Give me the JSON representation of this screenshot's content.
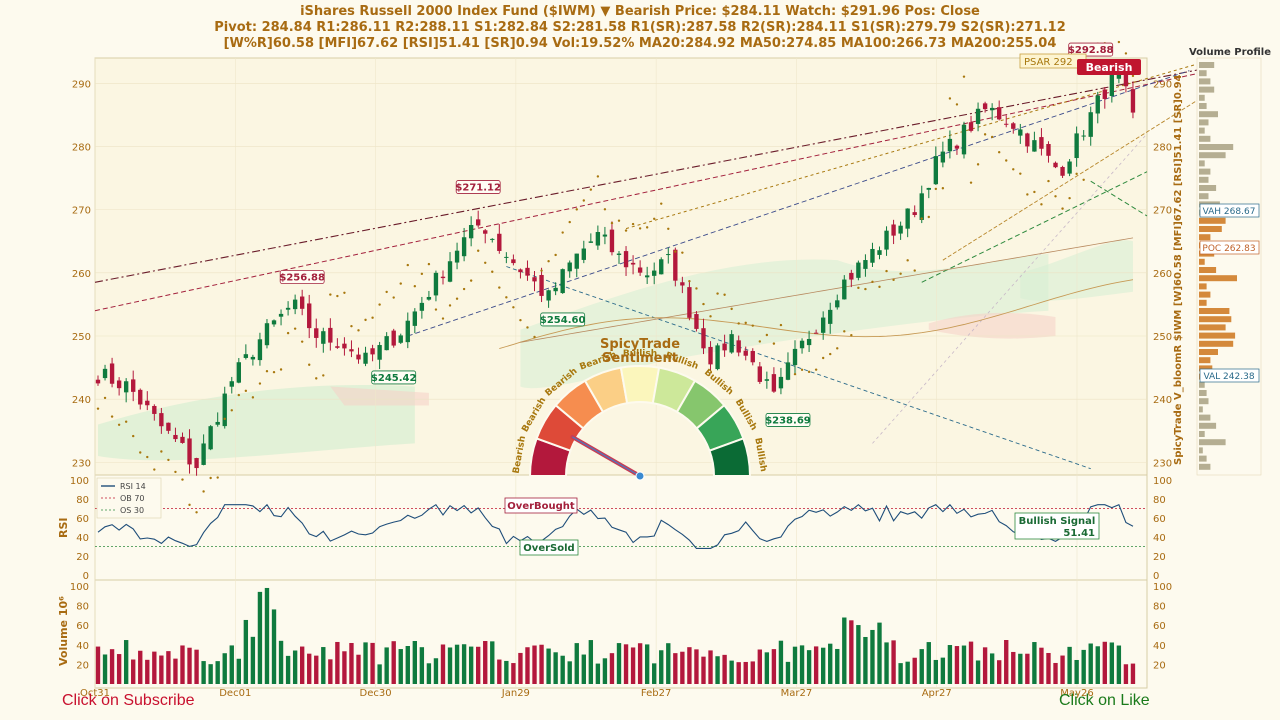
{
  "header": {
    "line1": "iShares Russell 2000 Index Fund  ($IWM)   ▼ Bearish   Price: $284.11    Watch: $291.96    Pos: Close",
    "line2": "Pivot: 284.84   R1:286.11   R2:288.11   S1:282.84   S2:281.58   R1(SR):287.58   R2(SR):284.11   S1(SR):279.79   S2(SR):271.12",
    "line3": "[W%R]60.58   [MFI]67.62   [RSI]51.41   [SR]0.94   Vol:19.52%   MA20:284.92   MA50:274.85   MA100:266.73   MA200:255.04"
  },
  "cta": {
    "subscribe": "Click on Subscribe",
    "like": "Click on Like"
  },
  "colors": {
    "up": "#0f7a3e",
    "down": "#b3183c",
    "accent": "#a86b12",
    "bg": "#fdfaee"
  },
  "chart_data": [
    {
      "type": "candlestick",
      "panel": "price",
      "ylim": [
        228,
        294
      ],
      "yticks": [
        230,
        240,
        250,
        260,
        270,
        280,
        290
      ],
      "right_axis_label": "SpicyTrade V_bloomR  $IWM  [W]60.58 [MFI]67.62 [RSI]51.41 [SR]0.94",
      "x_tick_labels": [
        "Oct31",
        "Dec01",
        "Dec30",
        "Jan29",
        "Feb27",
        "Mar27",
        "Apr27",
        "May26"
      ],
      "sessions": 148,
      "anchors": [
        [
          0,
          244
        ],
        [
          5,
          242
        ],
        [
          10,
          236
        ],
        [
          14,
          232
        ],
        [
          16,
          229
        ],
        [
          18,
          234
        ],
        [
          22,
          243
        ],
        [
          27,
          250
        ],
        [
          32,
          255
        ],
        [
          36,
          250
        ],
        [
          40,
          249
        ],
        [
          44,
          246
        ],
        [
          50,
          251
        ],
        [
          55,
          258
        ],
        [
          59,
          264
        ],
        [
          63,
          268
        ],
        [
          66,
          264
        ],
        [
          70,
          260
        ],
        [
          74,
          256
        ],
        [
          78,
          262
        ],
        [
          82,
          266
        ],
        [
          86,
          262
        ],
        [
          90,
          260
        ],
        [
          94,
          262
        ],
        [
          98,
          252
        ],
        [
          101,
          246
        ],
        [
          104,
          250
        ],
        [
          108,
          245
        ],
        [
          111,
          240
        ],
        [
          114,
          246
        ],
        [
          118,
          252
        ],
        [
          122,
          258
        ],
        [
          126,
          262
        ],
        [
          130,
          266
        ],
        [
          134,
          270
        ],
        [
          138,
          278
        ],
        [
          142,
          282
        ],
        [
          146,
          286
        ],
        [
          150,
          284
        ],
        [
          154,
          280
        ],
        [
          158,
          276
        ],
        [
          162,
          283
        ],
        [
          166,
          290
        ],
        [
          168,
          291
        ],
        [
          170,
          284
        ]
      ],
      "price_labels": [
        {
          "text": "$271.12",
          "i": 62,
          "value": 271.12,
          "type": "high"
        },
        {
          "text": "$256.88",
          "i": 33,
          "value": 256.88,
          "type": "high"
        },
        {
          "text": "$245.42",
          "i": 48,
          "value": 245.42,
          "type": "low"
        },
        {
          "text": "$254.60",
          "i": 76,
          "value": 254.6,
          "type": "low"
        },
        {
          "text": "$238.69",
          "i": 113,
          "value": 238.69,
          "type": "low"
        },
        {
          "text": "$292.88",
          "i": 163,
          "value": 292.88,
          "type": "high"
        }
      ],
      "psar_label": "PSAR 292",
      "signal_label": "Bearish",
      "volume_profile": {
        "title": "Volume Profile",
        "vah": "VAH 268.67",
        "poc": "POC 262.83",
        "val": "VAL 242.38"
      },
      "moving_averages": [
        "MA20",
        "MA50",
        "MA100",
        "MA200"
      ]
    },
    {
      "type": "gauge",
      "title_line1": "SpicyTrade",
      "title_line2": "Sentiment",
      "segments": [
        "Bearish",
        "Bearish",
        "Bearish",
        "Bearish",
        "Bullish",
        "Bullish",
        "Bullish",
        "Bullish",
        "Bullish"
      ],
      "segment_colors": [
        "#b3183c",
        "#de4a38",
        "#f68d4f",
        "#fbcf86",
        "#fbf6bc",
        "#cde89a",
        "#86c66d",
        "#38a558",
        "#0b6b35"
      ],
      "needle_segment": 1
    },
    {
      "type": "line",
      "panel": "rsi",
      "ylabel": "RSI",
      "ylim": [
        0,
        100
      ],
      "yticks": [
        0,
        20,
        40,
        60,
        80,
        100
      ],
      "legend": [
        "RSI 14",
        "OB 70",
        "OS 30"
      ],
      "overbought_label": "OverBought",
      "oversold_label": "OverSold",
      "signal_text": "Bullish Signal",
      "signal_value": "51.41",
      "ob": 70,
      "os": 30
    },
    {
      "type": "bar",
      "panel": "volume",
      "ylabel": "Volume  10⁶",
      "ylim": [
        0,
        100
      ],
      "yticks": [
        20,
        40,
        60,
        80,
        100
      ]
    }
  ]
}
